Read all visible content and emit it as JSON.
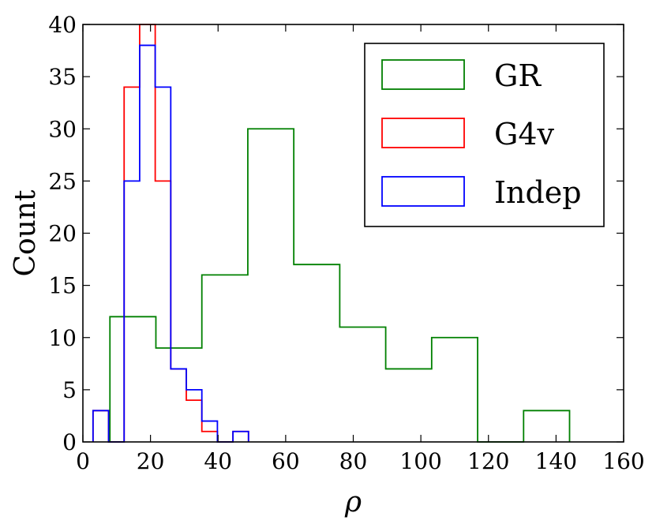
{
  "chart_data": {
    "type": "histogram",
    "title": "",
    "xlabel": "ρ",
    "ylabel": "Count",
    "xlim": [
      0,
      160
    ],
    "ylim": [
      0,
      40
    ],
    "xticks": [
      0,
      20,
      40,
      60,
      80,
      100,
      120,
      140,
      160
    ],
    "yticks": [
      0,
      5,
      10,
      15,
      20,
      25,
      30,
      35,
      40
    ],
    "grid": false,
    "legend_position": "top-right",
    "series": [
      {
        "name": "GR",
        "color": "#008000",
        "bin_edges": [
          8,
          21.6,
          35.2,
          48.8,
          62.4,
          76.0,
          89.6,
          103.2,
          116.8,
          130.4,
          144.0
        ],
        "counts": [
          12,
          9,
          16,
          30,
          17,
          11,
          7,
          10,
          0,
          3
        ]
      },
      {
        "name": "G4v",
        "color": "#ff0000",
        "bin_edges": [
          3,
          7.6,
          12.2,
          16.8,
          21.4,
          26.0,
          30.6,
          35.2,
          39.8,
          44.4,
          49.0
        ],
        "counts": [
          3,
          0,
          34,
          40,
          25,
          7,
          4,
          1,
          0,
          1
        ]
      },
      {
        "name": "Indep",
        "color": "#0000ff",
        "bin_edges": [
          3,
          7.6,
          12.2,
          16.8,
          21.4,
          26.0,
          30.6,
          35.2,
          39.8,
          44.4,
          49.0
        ],
        "counts": [
          3,
          0,
          25,
          38,
          34,
          7,
          5,
          2,
          0,
          1
        ]
      }
    ]
  }
}
